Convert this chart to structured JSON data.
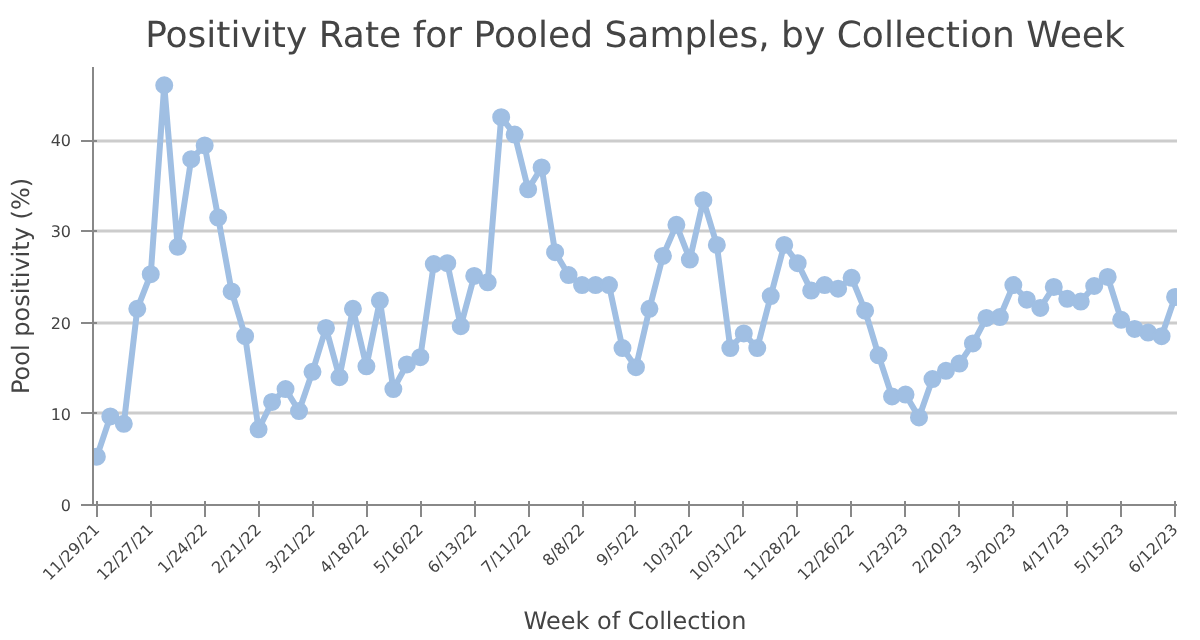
{
  "chart_data": {
    "type": "line",
    "title": "Positivity Rate for Pooled Samples, by Collection Week",
    "xlabel": "Week of Collection",
    "ylabel": "Pool positivity (%)",
    "x": [
      "2021-11-29",
      "2021-12-06",
      "2021-12-13",
      "2021-12-20",
      "2021-12-27",
      "2022-01-03",
      "2022-01-10",
      "2022-01-17",
      "2022-01-24",
      "2022-01-31",
      "2022-02-07",
      "2022-02-14",
      "2022-02-21",
      "2022-02-28",
      "2022-03-07",
      "2022-03-14",
      "2022-03-21",
      "2022-03-28",
      "2022-04-04",
      "2022-04-11",
      "2022-04-18",
      "2022-04-25",
      "2022-05-02",
      "2022-05-09",
      "2022-05-16",
      "2022-05-23",
      "2022-05-30",
      "2022-06-06",
      "2022-06-13",
      "2022-06-20",
      "2022-06-27",
      "2022-07-04",
      "2022-07-11",
      "2022-07-18",
      "2022-07-25",
      "2022-08-01",
      "2022-08-08",
      "2022-08-15",
      "2022-08-22",
      "2022-08-29",
      "2022-09-05",
      "2022-09-12",
      "2022-09-19",
      "2022-09-26",
      "2022-10-03",
      "2022-10-10",
      "2022-10-17",
      "2022-10-24",
      "2022-10-31",
      "2022-11-07",
      "2022-11-14",
      "2022-11-21",
      "2022-11-28",
      "2022-12-05",
      "2022-12-12",
      "2022-12-19",
      "2022-12-26",
      "2023-01-02",
      "2023-01-09",
      "2023-01-16",
      "2023-01-23",
      "2023-01-30",
      "2023-02-06",
      "2023-02-13",
      "2023-02-20",
      "2023-02-27",
      "2023-03-06",
      "2023-03-13",
      "2023-03-20",
      "2023-03-27",
      "2023-04-03",
      "2023-04-10",
      "2023-04-17",
      "2023-04-24",
      "2023-05-01",
      "2023-05-08",
      "2023-05-15",
      "2023-05-22",
      "2023-05-29",
      "2023-06-05",
      "2023-06-12"
    ],
    "series": [
      {
        "color": "#a0bfe3",
        "values": [
          5.3,
          9.7,
          8.9,
          21.5,
          25.3,
          46,
          28.3,
          37.9,
          39.4,
          31.5,
          23.4,
          18.5,
          8.3,
          11.3,
          12.7,
          10.3,
          14.6,
          19.4,
          14.0,
          21.5,
          15.2,
          22.4,
          12.7,
          15.4,
          16.2,
          26.4,
          26.5,
          19.6,
          25.1,
          24.4,
          42.5,
          40.6,
          34.6,
          37.0,
          27.7,
          25.2,
          24.1,
          24.1,
          24.1,
          17.2,
          15.1,
          21.5,
          27.3,
          30.7,
          26.9,
          33.4,
          28.5,
          17.2,
          18.8,
          17.2,
          22.9,
          28.5,
          26.5,
          23.5,
          24.1,
          23.7,
          24.9,
          21.3,
          16.4,
          11.9,
          12.1,
          9.6,
          13.8,
          14.7,
          15.5,
          17.7,
          20.5,
          20.6,
          24.1,
          22.5,
          21.6,
          23.9,
          22.6,
          22.3,
          24.0,
          25.0,
          20.3,
          19.3,
          18.9,
          18.5,
          22.8
        ]
      }
    ],
    "xlim": [
      "2021-11-27",
      "2023-06-13"
    ],
    "ylim": [
      0,
      48
    ],
    "yticks": [
      0,
      10,
      20,
      30,
      40
    ],
    "xticks": [
      {
        "value": "2021-11-29",
        "label": "11/29/21"
      },
      {
        "value": "2021-12-27",
        "label": "12/27/21"
      },
      {
        "value": "2022-01-24",
        "label": "1/24/22"
      },
      {
        "value": "2022-02-21",
        "label": "2/21/22"
      },
      {
        "value": "2022-03-21",
        "label": "3/21/22"
      },
      {
        "value": "2022-04-18",
        "label": "4/18/22"
      },
      {
        "value": "2022-05-16",
        "label": "5/16/22"
      },
      {
        "value": "2022-06-13",
        "label": "6/13/22"
      },
      {
        "value": "2022-07-11",
        "label": "7/11/22"
      },
      {
        "value": "2022-08-08",
        "label": "8/8/22"
      },
      {
        "value": "2022-09-05",
        "label": "9/5/22"
      },
      {
        "value": "2022-10-03",
        "label": "10/3/22"
      },
      {
        "value": "2022-10-31",
        "label": "10/31/22"
      },
      {
        "value": "2022-11-28",
        "label": "11/28/22"
      },
      {
        "value": "2022-12-26",
        "label": "12/26/22"
      },
      {
        "value": "2023-01-23",
        "label": "1/23/23"
      },
      {
        "value": "2023-02-20",
        "label": "2/20/23"
      },
      {
        "value": "2023-03-20",
        "label": "3/20/23"
      },
      {
        "value": "2023-04-17",
        "label": "4/17/23"
      },
      {
        "value": "2023-05-15",
        "label": "5/15/23"
      },
      {
        "value": "2023-06-12",
        "label": "6/12/23"
      }
    ],
    "grid": "y",
    "marker": "circle",
    "line_style": "solid"
  }
}
